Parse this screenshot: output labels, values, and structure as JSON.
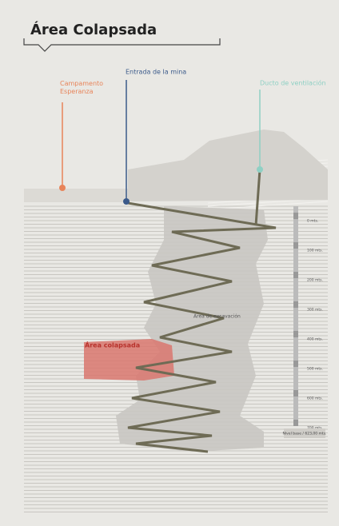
{
  "header": {
    "title": "Área Colapsada"
  },
  "labels": {
    "camp": "Campamento Esperanza",
    "entrance": "Entrada de la mina",
    "vent": "Ducto de ventilación",
    "collapsed": "Área colapsada",
    "excavation": "Área de excavación"
  },
  "scale": {
    "ticks": [
      "0 mts.",
      "100 mts.",
      "200 mts.",
      "300 mts.",
      "400 mts.",
      "500 mts.",
      "600 mts.",
      "700 mts."
    ],
    "base": "Nivel base / 623,00 mts."
  }
}
